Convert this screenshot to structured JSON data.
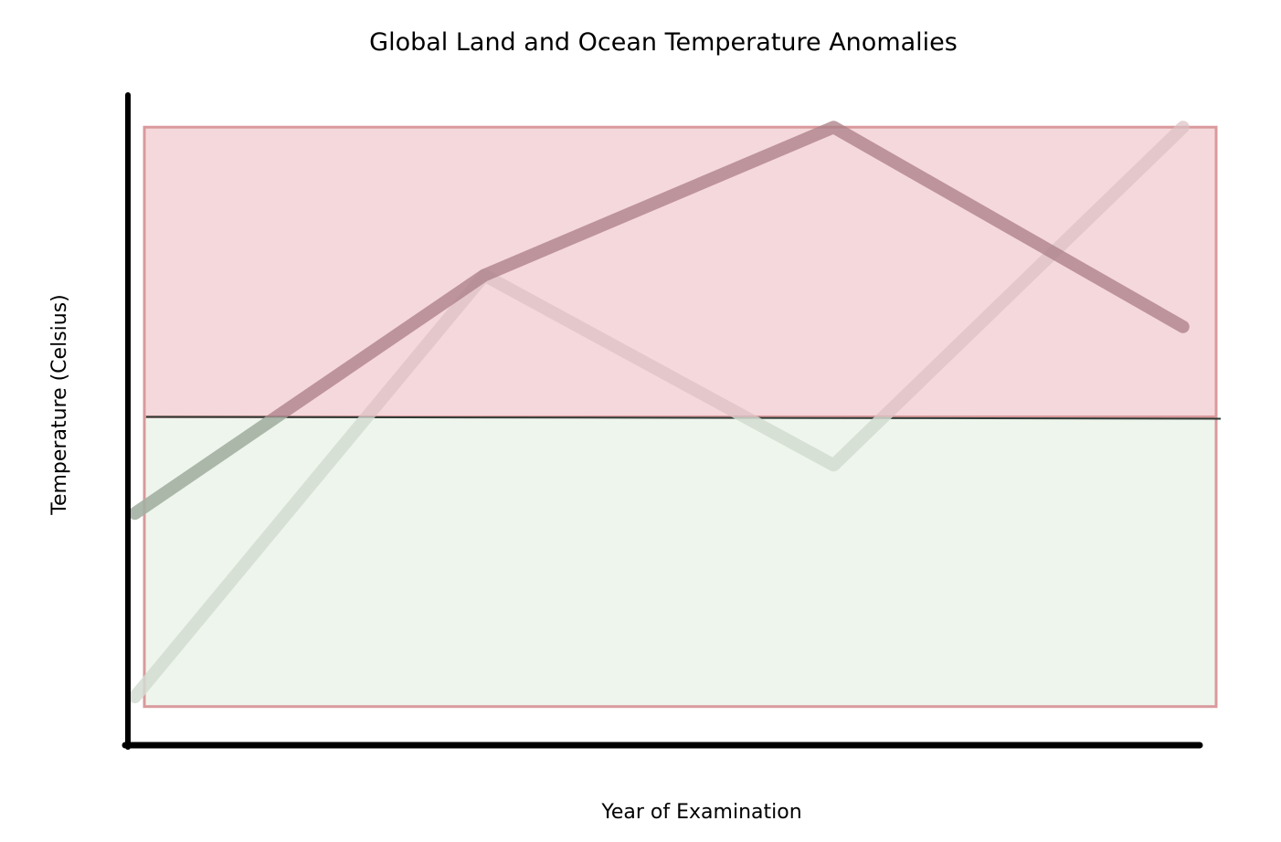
{
  "chart_data": {
    "type": "line",
    "title": "Global Land and Ocean Temperature Anomalies",
    "xlabel": "Year of Examination",
    "ylabel": "Temperature (Celsius)",
    "x": [
      0,
      1,
      2,
      3
    ],
    "xlim": [
      -0.02,
      3.1
    ],
    "ylim": [
      -1.02,
      1.0
    ],
    "grid": false,
    "legend": "none",
    "zero_line": 0,
    "bands": [
      {
        "from": 0,
        "to": 0.9,
        "color": "#f5d8db",
        "edge": "#d99a9c"
      },
      {
        "from": -0.9,
        "to": 0,
        "color": "#eef5ec",
        "edge": "#d99a9c"
      }
    ],
    "series": [
      {
        "values": [
          -0.3,
          0.44,
          0.9,
          0.28
        ],
        "color": "#a97e86",
        "opacity": 0.75
      },
      {
        "values": [
          -0.87,
          0.44,
          -0.15,
          0.9
        ],
        "color": "#dcc1c4",
        "opacity": 0.7
      }
    ],
    "colors": {
      "axis": "#000000",
      "zero_line": "#2e3b36",
      "below_zero_line_tint": "#b7c6b5"
    }
  }
}
